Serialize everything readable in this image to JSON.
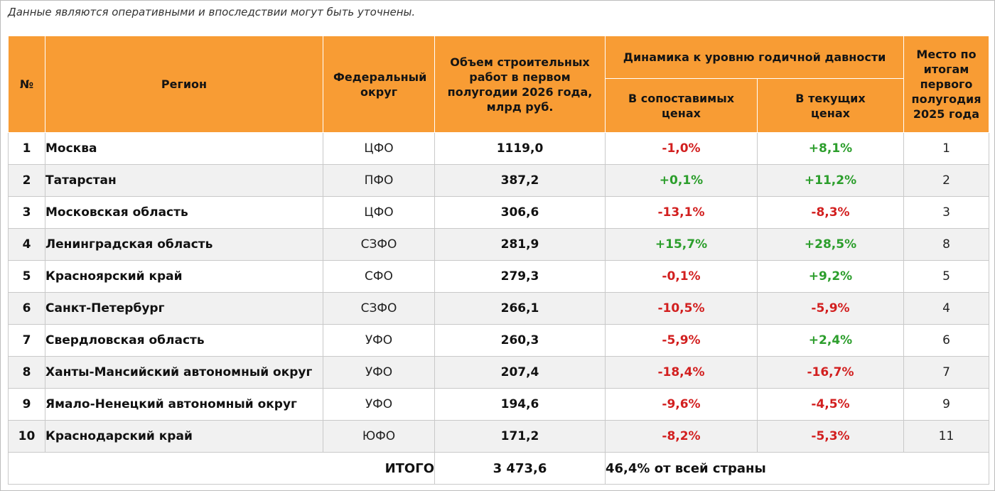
{
  "note": "Данные являются оперативными и впоследствии могут быть уточнены.",
  "table": {
    "headers": {
      "num": "№",
      "region": "Регион",
      "federal_district": "Федеральный округ",
      "volume": "Объем строительных работ в первом полугодии 2026 года, млрд руб.",
      "dynamics": "Динамика к уровню годичной давности",
      "comparable": "В сопоставимых ценах",
      "current": "В текущих ценах",
      "place": "Место по итогам первого полугодия 2025 года"
    },
    "rows": [
      {
        "num": "1",
        "region": "Москва",
        "fo": "ЦФО",
        "volume": "1119,0",
        "comparable": "-1,0%",
        "current": "+8,1%",
        "place": "1"
      },
      {
        "num": "2",
        "region": "Татарстан",
        "fo": "ПФО",
        "volume": "387,2",
        "comparable": "+0,1%",
        "current": "+11,2%",
        "place": "2"
      },
      {
        "num": "3",
        "region": "Московская область",
        "fo": "ЦФО",
        "volume": "306,6",
        "comparable": "-13,1%",
        "current": "-8,3%",
        "place": "3"
      },
      {
        "num": "4",
        "region": "Ленинградская область",
        "fo": "СЗФО",
        "volume": "281,9",
        "comparable": "+15,7%",
        "current": "+28,5%",
        "place": "8"
      },
      {
        "num": "5",
        "region": "Красноярский край",
        "fo": "СФО",
        "volume": "279,3",
        "comparable": "-0,1%",
        "current": "+9,2%",
        "place": "5"
      },
      {
        "num": "6",
        "region": "Санкт-Петербург",
        "fo": "СЗФО",
        "volume": "266,1",
        "comparable": "-10,5%",
        "current": "-5,9%",
        "place": "4"
      },
      {
        "num": "7",
        "region": "Свердловская область",
        "fo": "УФО",
        "volume": "260,3",
        "comparable": "-5,9%",
        "current": "+2,4%",
        "place": "6"
      },
      {
        "num": "8",
        "region": "Ханты-Мансийский автономный округ",
        "fo": "УФО",
        "volume": "207,4",
        "comparable": "-18,4%",
        "current": "-16,7%",
        "place": "7"
      },
      {
        "num": "9",
        "region": "Ямало-Ненецкий автономный округ",
        "fo": "УФО",
        "volume": "194,6",
        "comparable": "-9,6%",
        "current": "-4,5%",
        "place": "9"
      },
      {
        "num": "10",
        "region": "Краснодарский край",
        "fo": "ЮФО",
        "volume": "171,2",
        "comparable": "-8,2%",
        "current": "-5,3%",
        "place": "11"
      }
    ],
    "total": {
      "label": "ИТОГО",
      "volume": "3 473,6",
      "share": "46,4% от всей страны"
    }
  },
  "colors": {
    "header_bg": "#f89c34",
    "negative": "#d21f1f",
    "positive": "#2c9e2c",
    "stripe": "#f1f1f1"
  }
}
